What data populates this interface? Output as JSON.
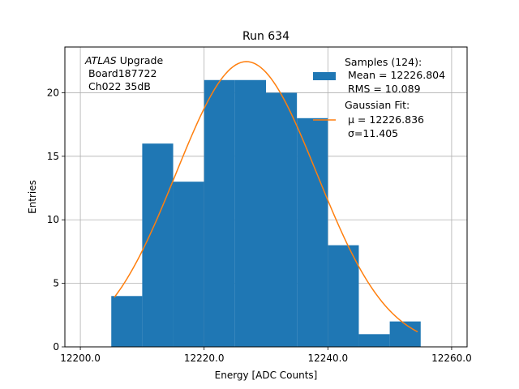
{
  "chart_data": {
    "type": "bar",
    "title": "Run 634",
    "xlabel": "Energy [ADC Counts]",
    "ylabel": "Entries",
    "xlim": [
      12197.5,
      12262.5
    ],
    "ylim": [
      0,
      23.6
    ],
    "grid": true,
    "x_ticks": [
      12200.0,
      12220.0,
      12240.0,
      12260.0
    ],
    "x_tick_labels": [
      "12200.0",
      "12220.0",
      "12240.0",
      "12260.0"
    ],
    "y_ticks": [
      0,
      5,
      10,
      15,
      20
    ],
    "y_tick_labels": [
      "0",
      "5",
      "10",
      "15",
      "20"
    ],
    "bins": [
      {
        "x0": 12205,
        "x1": 12210,
        "count": 4
      },
      {
        "x0": 12210,
        "x1": 12215,
        "count": 16
      },
      {
        "x0": 12215,
        "x1": 12220,
        "count": 13
      },
      {
        "x0": 12220,
        "x1": 12225,
        "count": 21
      },
      {
        "x0": 12225,
        "x1": 12230,
        "count": 21
      },
      {
        "x0": 12230,
        "x1": 12235,
        "count": 20
      },
      {
        "x0": 12235,
        "x1": 12240,
        "count": 18
      },
      {
        "x0": 12240,
        "x1": 12245,
        "count": 8
      },
      {
        "x0": 12245,
        "x1": 12250,
        "count": 1
      },
      {
        "x0": 12250,
        "x1": 12255,
        "count": 2
      }
    ],
    "fit": {
      "mu": 12226.836,
      "sigma": 11.405,
      "amplitude": 22.45,
      "x_range": [
        12205.5,
        12254.5
      ]
    },
    "colors": {
      "hist": "#1f77b4",
      "fit": "#ff7f0e",
      "grid": "#b0b0b0"
    },
    "annotation": {
      "line1_italic": "ATLAS",
      "line1_rest": " Upgrade",
      "line2": " Board187722",
      "line3": " Ch022 35dB"
    },
    "legend": {
      "placement": "top-right",
      "samples": [
        "Samples (124):",
        " Mean = 12226.804",
        " RMS = 10.089"
      ],
      "fit_title": "Gaussian Fit:",
      "fit_mu": "μ = 12226.836",
      "fit_sigma": "σ=11.405"
    }
  }
}
